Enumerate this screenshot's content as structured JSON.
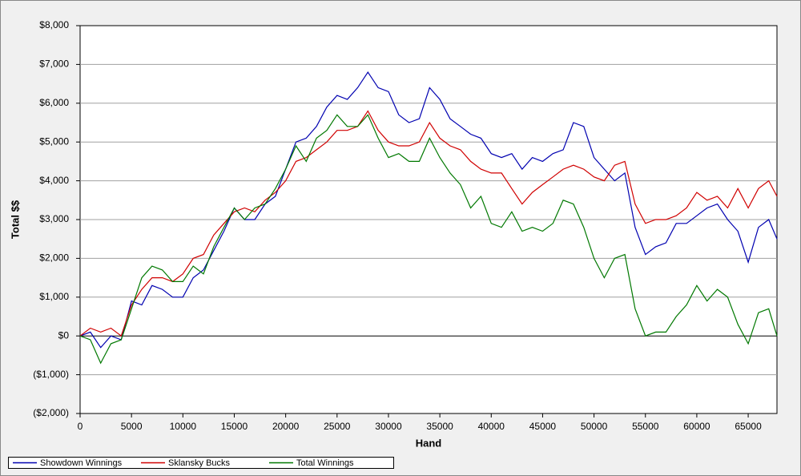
{
  "chart_data": {
    "type": "line",
    "x_label": "Hand",
    "y_label": "Total $$",
    "x": [
      0,
      1000,
      2000,
      3000,
      4000,
      5000,
      6000,
      7000,
      8000,
      9000,
      10000,
      11000,
      12000,
      13000,
      14000,
      15000,
      16000,
      17000,
      18000,
      19000,
      20000,
      21000,
      22000,
      23000,
      24000,
      25000,
      26000,
      27000,
      28000,
      29000,
      30000,
      31000,
      32000,
      33000,
      34000,
      35000,
      36000,
      37000,
      38000,
      39000,
      40000,
      41000,
      42000,
      43000,
      44000,
      45000,
      46000,
      47000,
      48000,
      49000,
      50000,
      51000,
      52000,
      53000,
      54000,
      55000,
      56000,
      57000,
      58000,
      59000,
      60000,
      61000,
      62000,
      63000,
      64000,
      65000,
      66000,
      67000,
      67800
    ],
    "series": [
      {
        "name": "Showdown Winnings",
        "color": "#0000b0",
        "values": [
          0,
          100,
          -300,
          0,
          -100,
          900,
          800,
          1300,
          1200,
          1000,
          1000,
          1500,
          1700,
          2200,
          2700,
          3300,
          3000,
          3000,
          3400,
          3600,
          4300,
          5000,
          5100,
          5400,
          5900,
          6200,
          6100,
          6400,
          6800,
          6400,
          6300,
          5700,
          5500,
          5600,
          6400,
          6100,
          5600,
          5400,
          5200,
          5100,
          4700,
          4600,
          4700,
          4300,
          4600,
          4500,
          4700,
          4800,
          5500,
          5400,
          4600,
          4300,
          4000,
          4200,
          2800,
          2100,
          2300,
          2400,
          2900,
          2900,
          3100,
          3300,
          3400,
          3000,
          2700,
          1900,
          2800,
          3000,
          2500
        ]
      },
      {
        "name": "Sklansky Bucks",
        "color": "#d00000",
        "values": [
          0,
          200,
          100,
          200,
          0,
          800,
          1200,
          1500,
          1500,
          1400,
          1600,
          2000,
          2100,
          2600,
          2900,
          3200,
          3300,
          3200,
          3500,
          3700,
          4000,
          4500,
          4600,
          4800,
          5000,
          5300,
          5300,
          5400,
          5800,
          5300,
          5000,
          4900,
          4900,
          5000,
          5500,
          5100,
          4900,
          4800,
          4500,
          4300,
          4200,
          4200,
          3800,
          3400,
          3700,
          3900,
          4100,
          4300,
          4400,
          4300,
          4100,
          4000,
          4400,
          4500,
          3400,
          2900,
          3000,
          3000,
          3100,
          3300,
          3700,
          3500,
          3600,
          3300,
          3800,
          3300,
          3800,
          4000,
          3600
        ]
      },
      {
        "name": "Total Winnings",
        "color": "#007800",
        "values": [
          0,
          -100,
          -700,
          -200,
          -100,
          700,
          1500,
          1800,
          1700,
          1400,
          1400,
          1800,
          1600,
          2300,
          2800,
          3300,
          3000,
          3300,
          3400,
          3800,
          4300,
          4900,
          4500,
          5100,
          5300,
          5700,
          5400,
          5400,
          5700,
          5100,
          4600,
          4700,
          4500,
          4500,
          5100,
          4600,
          4200,
          3900,
          3300,
          3600,
          2900,
          2800,
          3200,
          2700,
          2800,
          2700,
          2900,
          3500,
          3400,
          2800,
          2000,
          1500,
          2000,
          2100,
          700,
          0,
          100,
          100,
          500,
          800,
          1300,
          900,
          1200,
          1000,
          300,
          -200,
          600,
          700,
          0
        ]
      }
    ],
    "xlim": [
      0,
      67800
    ],
    "xticks": [
      0,
      5000,
      10000,
      15000,
      20000,
      25000,
      30000,
      35000,
      40000,
      45000,
      50000,
      55000,
      60000,
      65000
    ],
    "ylim": [
      -2000,
      8000
    ],
    "yticks": [
      {
        "value": -2000,
        "label": "($2,000)"
      },
      {
        "value": -1000,
        "label": "($1,000)"
      },
      {
        "value": 0,
        "label": "$0"
      },
      {
        "value": 1000,
        "label": "$1,000"
      },
      {
        "value": 2000,
        "label": "$2,000"
      },
      {
        "value": 3000,
        "label": "$3,000"
      },
      {
        "value": 4000,
        "label": "$4,000"
      },
      {
        "value": 5000,
        "label": "$5,000"
      },
      {
        "value": 6000,
        "label": "$6,000"
      },
      {
        "value": 7000,
        "label": "$7,000"
      },
      {
        "value": 8000,
        "label": "$8,000"
      }
    ],
    "grid": true,
    "legend": "bottom-left"
  }
}
